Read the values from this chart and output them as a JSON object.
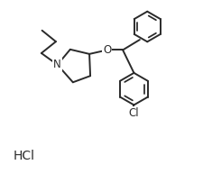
{
  "background_color": "#ffffff",
  "line_color": "#2a2a2a",
  "text_color": "#2a2a2a",
  "line_width": 1.4,
  "font_size": 8.5,
  "hcl_font_size": 10,
  "figsize": [
    2.25,
    1.93
  ],
  "dpi": 100,
  "xlim": [
    0,
    9
  ],
  "ylim": [
    0,
    7.7
  ]
}
